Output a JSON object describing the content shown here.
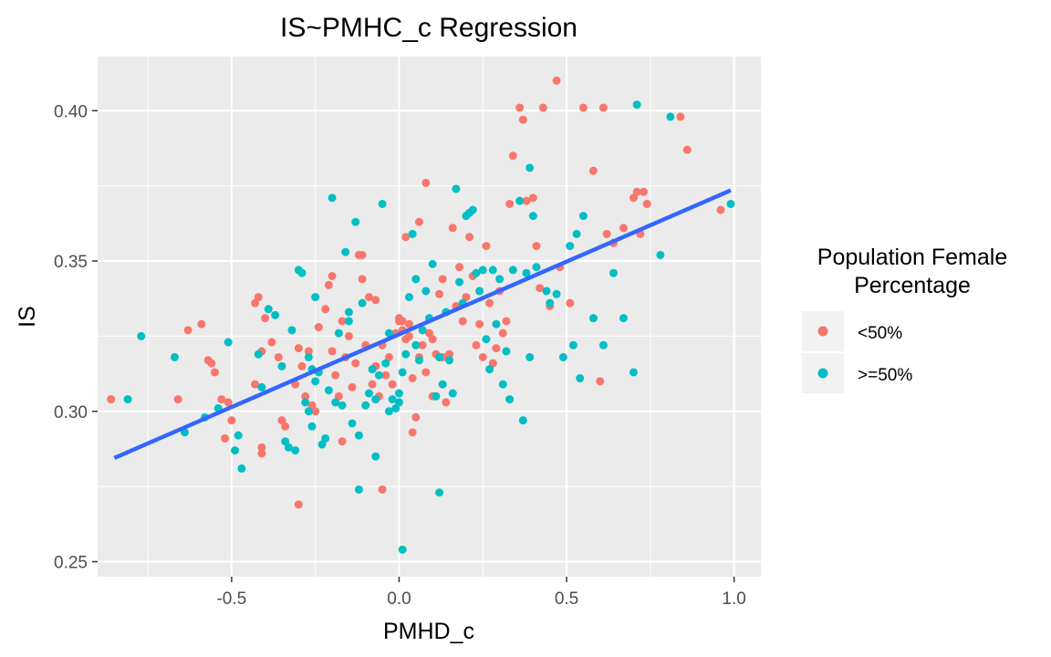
{
  "chart_data": {
    "type": "scatter",
    "title": "IS~PMHC_c Regression",
    "xlabel": "PMHD_c",
    "ylabel": "IS",
    "xlim": [
      -0.9,
      1.08
    ],
    "ylim": [
      0.245,
      0.418
    ],
    "x_ticks": [
      -0.5,
      0.0,
      0.5,
      1.0
    ],
    "x_tick_labels": [
      "-0.5",
      "0.0",
      "0.5",
      "1.0"
    ],
    "y_ticks": [
      0.25,
      0.3,
      0.35,
      0.4
    ],
    "y_tick_labels": [
      "0.25",
      "0.30",
      "0.35",
      "0.40"
    ],
    "grid": true,
    "legend": {
      "title_lines": [
        "Population Female",
        "Percentage"
      ],
      "placement": "right"
    },
    "regression_line": {
      "x": [
        -0.85,
        0.99
      ],
      "y": [
        0.2845,
        0.3735
      ],
      "color": "#3366FF"
    },
    "series": [
      {
        "name": "<50%",
        "color": "#F8766D",
        "points": [
          [
            -0.86,
            0.304
          ],
          [
            -0.66,
            0.304
          ],
          [
            -0.63,
            0.327
          ],
          [
            -0.59,
            0.329
          ],
          [
            -0.57,
            0.317
          ],
          [
            -0.56,
            0.316
          ],
          [
            -0.55,
            0.313
          ],
          [
            -0.53,
            0.304
          ],
          [
            -0.51,
            0.303
          ],
          [
            -0.52,
            0.291
          ],
          [
            -0.5,
            0.297
          ],
          [
            -0.41,
            0.32
          ],
          [
            -0.43,
            0.309
          ],
          [
            -0.43,
            0.336
          ],
          [
            -0.42,
            0.338
          ],
          [
            -0.4,
            0.331
          ],
          [
            -0.38,
            0.323
          ],
          [
            -0.36,
            0.318
          ],
          [
            -0.35,
            0.297
          ],
          [
            -0.34,
            0.295
          ],
          [
            -0.31,
            0.309
          ],
          [
            -0.3,
            0.321
          ],
          [
            -0.29,
            0.315
          ],
          [
            -0.28,
            0.305
          ],
          [
            -0.27,
            0.32
          ],
          [
            -0.26,
            0.302
          ],
          [
            -0.25,
            0.3
          ],
          [
            -0.24,
            0.328
          ],
          [
            -0.22,
            0.334
          ],
          [
            -0.21,
            0.342
          ],
          [
            -0.2,
            0.32
          ],
          [
            -0.19,
            0.312
          ],
          [
            -0.18,
            0.305
          ],
          [
            -0.17,
            0.33
          ],
          [
            -0.16,
            0.318
          ],
          [
            -0.15,
            0.325
          ],
          [
            -0.14,
            0.308
          ],
          [
            -0.13,
            0.316
          ],
          [
            -0.12,
            0.352
          ],
          [
            -0.11,
            0.352
          ],
          [
            -0.11,
            0.344
          ],
          [
            -0.1,
            0.322
          ],
          [
            -0.09,
            0.338
          ],
          [
            -0.08,
            0.309
          ],
          [
            -0.07,
            0.315
          ],
          [
            -0.06,
            0.305
          ],
          [
            -0.05,
            0.322
          ],
          [
            -0.04,
            0.312
          ],
          [
            -0.03,
            0.318
          ],
          [
            -0.02,
            0.309
          ],
          [
            -0.01,
            0.326
          ],
          [
            0.0,
            0.331
          ],
          [
            0.01,
            0.33
          ],
          [
            0.02,
            0.324
          ],
          [
            0.03,
            0.329
          ],
          [
            0.04,
            0.311
          ],
          [
            0.05,
            0.298
          ],
          [
            0.06,
            0.318
          ],
          [
            0.07,
            0.322
          ],
          [
            0.08,
            0.313
          ],
          [
            0.09,
            0.326
          ],
          [
            0.1,
            0.324
          ],
          [
            0.11,
            0.319
          ],
          [
            0.12,
            0.339
          ],
          [
            0.13,
            0.318
          ],
          [
            0.14,
            0.303
          ],
          [
            0.15,
            0.319
          ],
          [
            0.17,
            0.335
          ],
          [
            0.19,
            0.33
          ],
          [
            0.2,
            0.338
          ],
          [
            0.21,
            0.358
          ],
          [
            0.22,
            0.345
          ],
          [
            0.23,
            0.322
          ],
          [
            0.24,
            0.329
          ],
          [
            0.25,
            0.318
          ],
          [
            0.26,
            0.355
          ],
          [
            0.27,
            0.336
          ],
          [
            0.28,
            0.316
          ],
          [
            0.29,
            0.321
          ],
          [
            0.3,
            0.34
          ],
          [
            0.31,
            0.326
          ],
          [
            0.32,
            0.33
          ],
          [
            0.33,
            0.369
          ],
          [
            0.34,
            0.385
          ],
          [
            0.36,
            0.401
          ],
          [
            0.37,
            0.397
          ],
          [
            0.38,
            0.37
          ],
          [
            0.4,
            0.371
          ],
          [
            0.41,
            0.355
          ],
          [
            0.42,
            0.341
          ],
          [
            0.43,
            0.401
          ],
          [
            0.45,
            0.335
          ],
          [
            0.47,
            0.41
          ],
          [
            0.48,
            0.348
          ],
          [
            0.51,
            0.336
          ],
          [
            0.55,
            0.401
          ],
          [
            0.58,
            0.38
          ],
          [
            0.6,
            0.31
          ],
          [
            0.61,
            0.401
          ],
          [
            0.62,
            0.359
          ],
          [
            0.64,
            0.356
          ],
          [
            0.67,
            0.361
          ],
          [
            0.7,
            0.371
          ],
          [
            0.71,
            0.373
          ],
          [
            0.72,
            0.359
          ],
          [
            0.73,
            0.373
          ],
          [
            0.74,
            0.369
          ],
          [
            0.84,
            0.398
          ],
          [
            0.86,
            0.387
          ],
          [
            0.96,
            0.367
          ],
          [
            -0.41,
            0.288
          ],
          [
            -0.41,
            0.286
          ],
          [
            -0.3,
            0.269
          ],
          [
            -0.05,
            0.274
          ],
          [
            -0.17,
            0.29
          ],
          [
            0.02,
            0.358
          ],
          [
            0.06,
            0.363
          ],
          [
            0.08,
            0.376
          ],
          [
            0.13,
            0.344
          ],
          [
            0.16,
            0.361
          ],
          [
            0.04,
            0.293
          ],
          [
            0.1,
            0.305
          ],
          [
            0.18,
            0.348
          ],
          [
            -0.2,
            0.345
          ],
          [
            -0.07,
            0.337
          ],
          [
            0.0,
            0.33
          ],
          [
            0.01,
            0.327
          ],
          [
            0.03,
            0.325
          ]
        ]
      },
      {
        "name": ">=50%",
        "color": "#00BFC4",
        "points": [
          [
            -0.81,
            0.304
          ],
          [
            -0.77,
            0.325
          ],
          [
            -0.67,
            0.318
          ],
          [
            -0.64,
            0.293
          ],
          [
            -0.58,
            0.298
          ],
          [
            -0.54,
            0.301
          ],
          [
            -0.51,
            0.323
          ],
          [
            -0.49,
            0.287
          ],
          [
            -0.48,
            0.292
          ],
          [
            -0.47,
            0.281
          ],
          [
            -0.42,
            0.319
          ],
          [
            -0.41,
            0.308
          ],
          [
            -0.39,
            0.334
          ],
          [
            -0.37,
            0.332
          ],
          [
            -0.35,
            0.315
          ],
          [
            -0.34,
            0.29
          ],
          [
            -0.33,
            0.288
          ],
          [
            -0.32,
            0.327
          ],
          [
            -0.31,
            0.287
          ],
          [
            -0.3,
            0.347
          ],
          [
            -0.29,
            0.346
          ],
          [
            -0.28,
            0.303
          ],
          [
            -0.27,
            0.3
          ],
          [
            -0.26,
            0.295
          ],
          [
            -0.25,
            0.31
          ],
          [
            -0.24,
            0.313
          ],
          [
            -0.23,
            0.289
          ],
          [
            -0.22,
            0.291
          ],
          [
            -0.21,
            0.307
          ],
          [
            -0.2,
            0.371
          ],
          [
            -0.19,
            0.303
          ],
          [
            -0.18,
            0.326
          ],
          [
            -0.17,
            0.302
          ],
          [
            -0.16,
            0.353
          ],
          [
            -0.15,
            0.333
          ],
          [
            -0.14,
            0.296
          ],
          [
            -0.13,
            0.363
          ],
          [
            -0.12,
            0.274
          ],
          [
            -0.12,
            0.292
          ],
          [
            -0.11,
            0.336
          ],
          [
            -0.1,
            0.302
          ],
          [
            -0.09,
            0.306
          ],
          [
            -0.08,
            0.314
          ],
          [
            -0.07,
            0.285
          ],
          [
            -0.06,
            0.312
          ],
          [
            -0.05,
            0.369
          ],
          [
            -0.04,
            0.316
          ],
          [
            -0.03,
            0.326
          ],
          [
            -0.02,
            0.304
          ],
          [
            -0.01,
            0.301
          ],
          [
            0.0,
            0.306
          ],
          [
            0.01,
            0.254
          ],
          [
            0.02,
            0.319
          ],
          [
            0.03,
            0.338
          ],
          [
            0.04,
            0.359
          ],
          [
            0.05,
            0.322
          ],
          [
            0.06,
            0.317
          ],
          [
            0.07,
            0.327
          ],
          [
            0.08,
            0.34
          ],
          [
            0.09,
            0.331
          ],
          [
            0.1,
            0.349
          ],
          [
            0.11,
            0.305
          ],
          [
            0.12,
            0.318
          ],
          [
            0.12,
            0.273
          ],
          [
            0.13,
            0.309
          ],
          [
            0.14,
            0.333
          ],
          [
            0.15,
            0.317
          ],
          [
            0.16,
            0.306
          ],
          [
            0.17,
            0.374
          ],
          [
            0.18,
            0.343
          ],
          [
            0.19,
            0.336
          ],
          [
            0.2,
            0.365
          ],
          [
            0.21,
            0.366
          ],
          [
            0.22,
            0.367
          ],
          [
            0.23,
            0.346
          ],
          [
            0.24,
            0.34
          ],
          [
            0.25,
            0.347
          ],
          [
            0.26,
            0.324
          ],
          [
            0.27,
            0.314
          ],
          [
            0.28,
            0.347
          ],
          [
            0.29,
            0.329
          ],
          [
            0.3,
            0.344
          ],
          [
            0.31,
            0.309
          ],
          [
            0.32,
            0.32
          ],
          [
            0.33,
            0.304
          ],
          [
            0.34,
            0.347
          ],
          [
            0.36,
            0.37
          ],
          [
            0.37,
            0.297
          ],
          [
            0.38,
            0.346
          ],
          [
            0.39,
            0.318
          ],
          [
            0.39,
            0.381
          ],
          [
            0.4,
            0.365
          ],
          [
            0.41,
            0.348
          ],
          [
            0.44,
            0.34
          ],
          [
            0.45,
            0.336
          ],
          [
            0.47,
            0.339
          ],
          [
            0.49,
            0.318
          ],
          [
            0.51,
            0.355
          ],
          [
            0.52,
            0.322
          ],
          [
            0.53,
            0.359
          ],
          [
            0.54,
            0.311
          ],
          [
            0.55,
            0.365
          ],
          [
            0.58,
            0.331
          ],
          [
            0.61,
            0.322
          ],
          [
            0.64,
            0.346
          ],
          [
            0.67,
            0.331
          ],
          [
            0.7,
            0.313
          ],
          [
            0.71,
            0.402
          ],
          [
            0.78,
            0.352
          ],
          [
            0.81,
            0.398
          ],
          [
            0.99,
            0.369
          ],
          [
            -0.07,
            0.304
          ],
          [
            -0.03,
            0.3
          ],
          [
            0.0,
            0.303
          ],
          [
            -0.25,
            0.338
          ],
          [
            -0.15,
            0.33
          ],
          [
            0.05,
            0.344
          ],
          [
            -0.27,
            0.318
          ],
          [
            -0.26,
            0.314
          ],
          [
            0.01,
            0.313
          ]
        ]
      }
    ]
  }
}
